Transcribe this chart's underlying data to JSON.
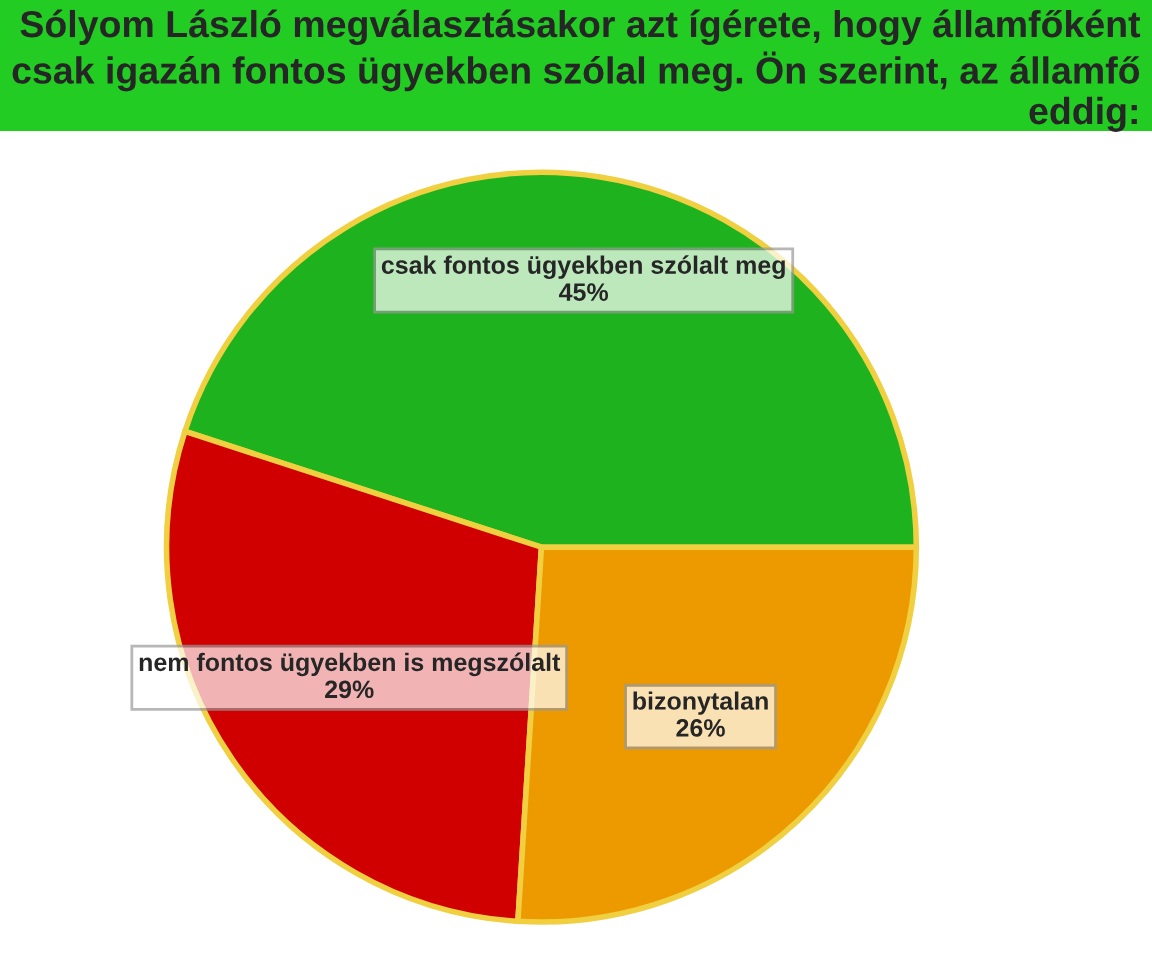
{
  "chart_data": {
    "type": "pie",
    "title": "Sólyom László megválasztásakor azt ígérete, hogy államfőként csak igazán fontos ügyekben szólal meg. Ön szerint, az államfő eddig:",
    "categories": [
      "csak fontos ügyekben szólalt meg",
      "nem fontos ügyekben is megszólalt",
      "bizonytalan"
    ],
    "values": [
      45,
      29,
      26
    ],
    "colors": [
      "#1fb21f",
      "#d00000",
      "#ec9a00"
    ],
    "value_labels": [
      "45%",
      "29%",
      "26%"
    ],
    "legend": false
  }
}
